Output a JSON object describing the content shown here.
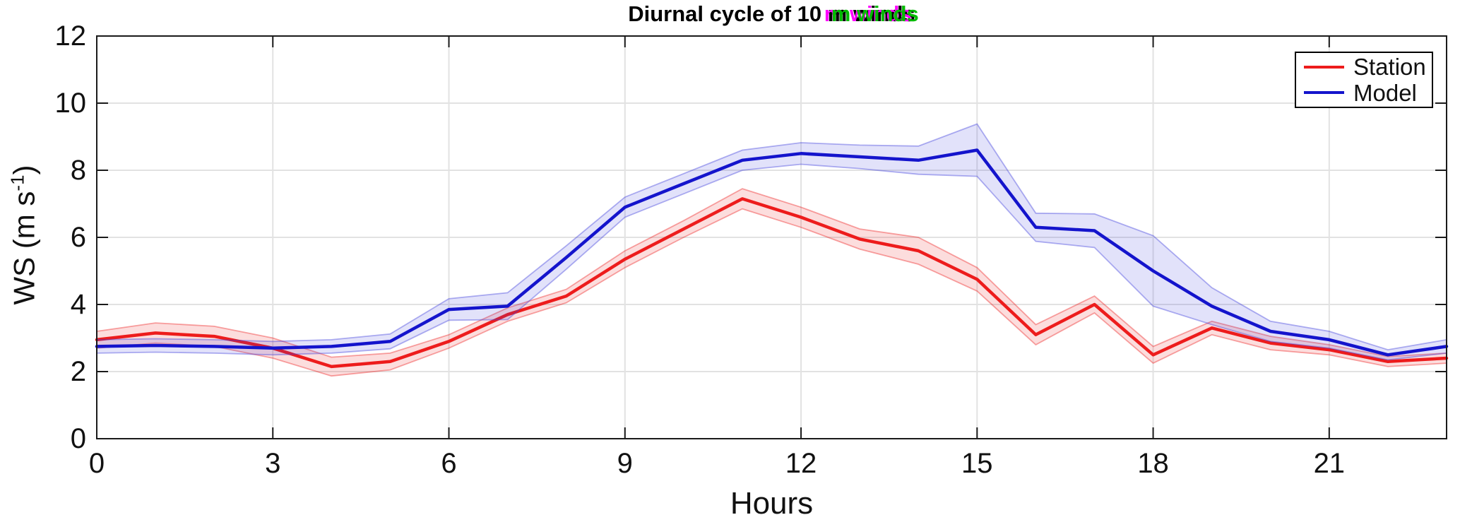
{
  "title": {
    "prefix": "Diurnal cycle of 10 ",
    "overlap": "m winds",
    "base_color": "#000000",
    "ghost_magenta": "#ff00ff",
    "ghost_green": "#00bb00"
  },
  "axes": {
    "xlabel": "Hours",
    "ylabel": "WS (m s⁻¹)",
    "ylabel_pre": "WS (m s",
    "ylabel_sup": "-1",
    "ylabel_post": ")"
  },
  "legend": {
    "items": [
      {
        "label": "Station",
        "color": "#ed1c1c"
      },
      {
        "label": "Model",
        "color": "#1414cc"
      }
    ]
  },
  "chart_data": {
    "type": "line",
    "title": "Diurnal cycle of 10 m winds",
    "xlabel": "Hours",
    "ylabel": "WS (m s⁻¹)",
    "xlim": [
      0,
      23
    ],
    "ylim": [
      0,
      12
    ],
    "x_ticks": [
      0,
      3,
      6,
      9,
      12,
      15,
      18,
      21
    ],
    "y_ticks": [
      0,
      2,
      4,
      6,
      8,
      10,
      12
    ],
    "grid": true,
    "grid_color": "#e2e2e2",
    "axis_color": "#1a1a1a",
    "legend_position": "top-right",
    "x": [
      0,
      1,
      2,
      3,
      4,
      5,
      6,
      7,
      8,
      9,
      10,
      11,
      12,
      13,
      14,
      15,
      16,
      17,
      18,
      19,
      20,
      21,
      22,
      23
    ],
    "series": [
      {
        "name": "Station",
        "color": "#ed1c1c",
        "band_fill": "rgba(237,30,30,0.15)",
        "band_edge": "rgba(237,30,30,0.40)",
        "values": [
          2.95,
          3.15,
          3.05,
          2.7,
          2.15,
          2.3,
          2.9,
          3.7,
          4.25,
          5.35,
          6.25,
          7.15,
          6.6,
          5.95,
          5.6,
          4.75,
          3.1,
          4.0,
          2.5,
          3.3,
          2.85,
          2.65,
          2.3,
          2.4
        ],
        "band_halfwidth": [
          0.25,
          0.3,
          0.3,
          0.3,
          0.28,
          0.25,
          0.2,
          0.2,
          0.2,
          0.25,
          0.25,
          0.3,
          0.3,
          0.3,
          0.4,
          0.35,
          0.3,
          0.25,
          0.25,
          0.2,
          0.2,
          0.15,
          0.15,
          0.15
        ]
      },
      {
        "name": "Model",
        "color": "#1414cc",
        "band_fill": "rgba(60,60,220,0.15)",
        "band_edge": "rgba(60,60,220,0.40)",
        "values": [
          2.75,
          2.78,
          2.75,
          2.7,
          2.75,
          2.9,
          3.85,
          3.95,
          5.4,
          6.9,
          7.6,
          8.3,
          8.5,
          8.4,
          8.3,
          8.6,
          6.3,
          6.2,
          5.0,
          3.95,
          3.2,
          2.95,
          2.5,
          2.75
        ],
        "band_halfwidth": [
          0.2,
          0.2,
          0.2,
          0.2,
          0.2,
          0.22,
          0.32,
          0.4,
          0.35,
          0.3,
          0.3,
          0.3,
          0.32,
          0.35,
          0.42,
          0.78,
          0.42,
          0.5,
          1.05,
          0.55,
          0.3,
          0.25,
          0.15,
          0.2
        ]
      }
    ]
  }
}
